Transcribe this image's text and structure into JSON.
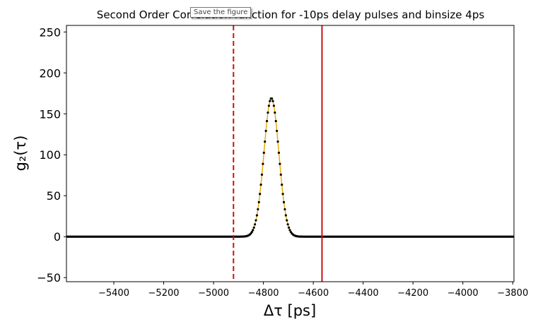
{
  "tooltip": {
    "text": "Save the figure"
  },
  "chart_data": {
    "type": "scatter",
    "title": "Second Order Correlation function for -10ps delay pulses and binsize 4ps",
    "xlabel": "Δτ [ps]",
    "ylabel": "g₂(τ)",
    "xlim": [
      -5590,
      -3795
    ],
    "ylim": [
      -55,
      258
    ],
    "xticks": [
      -5400,
      -5200,
      -5000,
      -4800,
      -4600,
      -4400,
      -4200,
      -4000,
      -3800
    ],
    "xtick_labels": [
      "−5400",
      "−5200",
      "−5000",
      "−4800",
      "−4600",
      "−4400",
      "−4200",
      "−4000",
      "−3800"
    ],
    "yticks": [
      -50,
      0,
      50,
      100,
      150,
      200,
      250
    ],
    "ytick_labels": [
      "−50",
      "0",
      "50",
      "100",
      "150",
      "200",
      "250"
    ],
    "grid": false,
    "bin_width": 4,
    "peak": {
      "center": -4768,
      "amplitude": 169,
      "sigma": 30
    },
    "series": [
      {
        "kind": "scatter",
        "color": "#000000",
        "x_start": -5590,
        "x_end": -3795,
        "step": 4
      },
      {
        "kind": "line",
        "color": "#e6a700"
      }
    ],
    "vlines": [
      {
        "x": -4920,
        "color": "#cc1111",
        "style": "dashed"
      },
      {
        "x": -4565,
        "color": "#cc1111",
        "style": "solid"
      }
    ]
  }
}
